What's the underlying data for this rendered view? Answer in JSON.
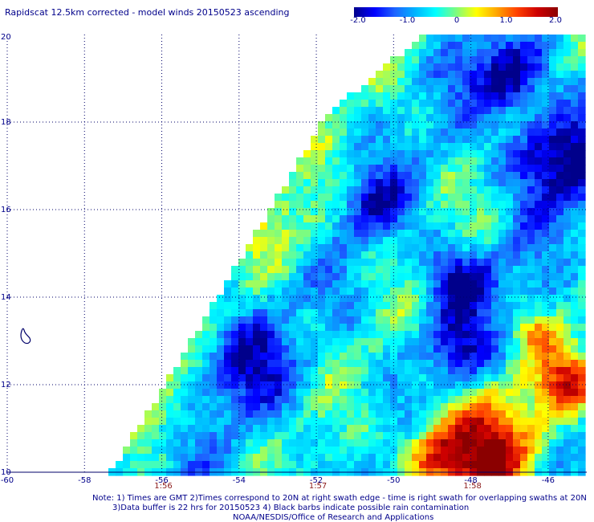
{
  "title": "Rapidscat 12.5km corrected - model winds 20150523 ascending",
  "colorbar": {
    "ticks": [
      "-2.0",
      "-1.0",
      "0",
      "1.0",
      "2.0"
    ],
    "min": -2.0,
    "max": 2.0,
    "colors": [
      "#00008b",
      "#0000ff",
      "#1e64ff",
      "#00b4ff",
      "#00ffff",
      "#7cfc80",
      "#ffff00",
      "#ffa500",
      "#ff4000",
      "#cd0000",
      "#8b0000"
    ]
  },
  "map": {
    "lon_range": [
      -60,
      -45
    ],
    "lat_range": [
      10,
      20
    ],
    "lon_labels": [
      "-60",
      "-58",
      "-56",
      "-54",
      "-52",
      "-50",
      "-48",
      "-46"
    ],
    "lat_labels": [
      "10",
      "12",
      "14",
      "16",
      "18",
      "20"
    ],
    "time_labels": [
      {
        "text": "1:56",
        "lon": -56
      },
      {
        "text": "1:57",
        "lon": -52
      },
      {
        "text": "1:58",
        "lon": -48
      }
    ],
    "island_name_icon": "island-outline",
    "swath_polygon": [
      {
        "lon": -57.3,
        "lat": 10
      },
      {
        "lon": -45,
        "lat": 10
      },
      {
        "lon": -45,
        "lat": 20
      },
      {
        "lon": -49.2,
        "lat": 20
      },
      {
        "lon": -51.7,
        "lat": 18.2
      }
    ]
  },
  "notes": {
    "line1": "Note: 1) Times are GMT 2)Times correspond to 20N at right swath edge - time is right swath for overlapping swaths at 20N",
    "line2": "3)Data buffer is 22 hrs for 20150523 4) Black barbs indicate possible rain contamination",
    "line3": "NOAA/NESDIS/Office of Research and Applications"
  }
}
